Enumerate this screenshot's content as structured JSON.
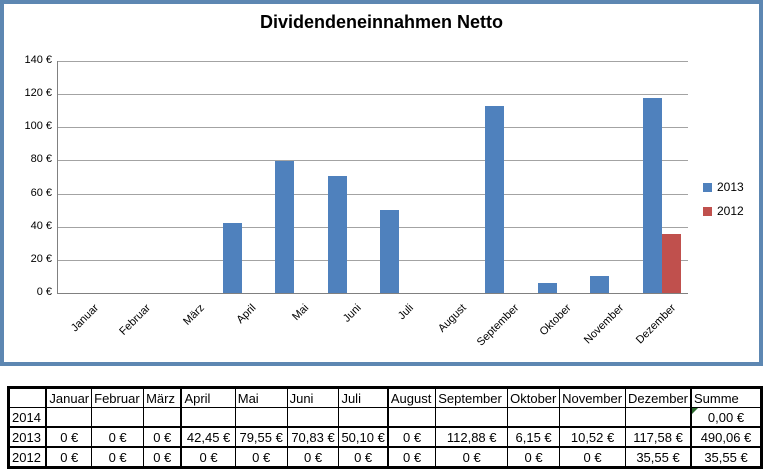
{
  "chart_data": {
    "type": "bar",
    "title": "Dividendeneinnahmen Netto",
    "categories": [
      "Januar",
      "Februar",
      "März",
      "April",
      "Mai",
      "Juni",
      "Juli",
      "August",
      "September",
      "Oktober",
      "November",
      "Dezember"
    ],
    "series": [
      {
        "name": "2013",
        "color": "#4F81BD",
        "values": [
          0,
          0,
          0,
          42.45,
          79.55,
          70.83,
          50.1,
          0,
          112.88,
          6.15,
          10.52,
          117.58
        ]
      },
      {
        "name": "2012",
        "color": "#C0504D",
        "values": [
          0,
          0,
          0,
          0,
          0,
          0,
          0,
          0,
          0,
          0,
          0,
          35.55
        ]
      }
    ],
    "xlabel": "",
    "ylabel": "",
    "ylim": [
      0,
      140
    ],
    "ytick_step": 20,
    "yticks": [
      "0 €",
      "20 €",
      "40 €",
      "60 €",
      "80 €",
      "100 €",
      "120 €",
      "140 €"
    ],
    "grid": true,
    "legend_position": "right",
    "colors": {
      "series_2013": "#4F81BD",
      "series_2012": "#C0504D",
      "border": "#5d87b2",
      "gridline": "#a3a3a3"
    }
  },
  "table": {
    "columns": [
      "",
      "Januar",
      "Februar",
      "März",
      "April",
      "Mai",
      "Juni",
      "Juli",
      "August",
      "September",
      "Oktober",
      "November",
      "Dezember",
      "Summe"
    ],
    "rows": [
      {
        "label": "2014",
        "cells": [
          "",
          "",
          "",
          "",
          "",
          "",
          "",
          "",
          "",
          "",
          "",
          ""
        ],
        "summe": "0,00 €",
        "summe_indicator": true
      },
      {
        "label": "2013",
        "cells": [
          "0 €",
          "0 €",
          "0 €",
          "42,45 €",
          "79,55 €",
          "70,83 €",
          "50,10 €",
          "0 €",
          "112,88 €",
          "6,15 €",
          "10,52 €",
          "117,58 €"
        ],
        "summe": "490,06 €",
        "summe_indicator": false
      },
      {
        "label": "2012",
        "cells": [
          "0 €",
          "0 €",
          "0 €",
          "0 €",
          "0 €",
          "0 €",
          "0 €",
          "0 €",
          "0 €",
          "0 €",
          "0 €",
          "35,55 €"
        ],
        "summe": "35,55 €",
        "summe_indicator": false
      }
    ]
  }
}
